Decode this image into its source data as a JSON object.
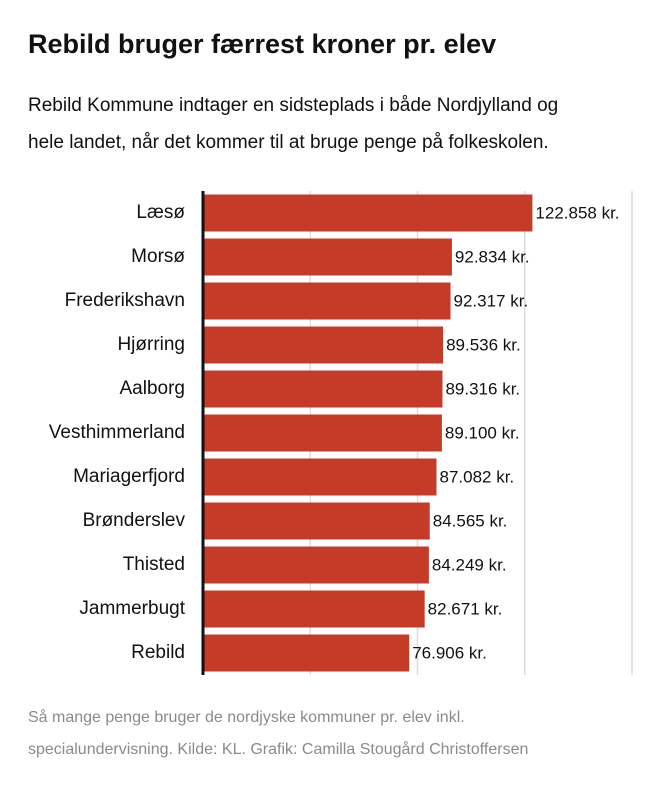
{
  "chart_data": {
    "type": "barh",
    "title": "Rebild bruger færrest kroner pr. elev",
    "subtitle": [
      "Rebild Kommune indtager en sidsteplads i både Nordjylland og",
      "hele landet, når det kommer til at bruge penge på folkeskolen."
    ],
    "categories": [
      "Læsø",
      "Morsø",
      "Frederikshavn",
      "Hjørring",
      "Aalborg",
      "Vesthimmerland",
      "Mariagerfjord",
      "Brønderslev",
      "Thisted",
      "Jammerbugt",
      "Rebild"
    ],
    "values": [
      122858,
      92834,
      92317,
      89536,
      89316,
      89100,
      87082,
      84565,
      84249,
      82671,
      76906
    ],
    "value_labels": [
      "122.858 kr.",
      "92.834 kr.",
      "92.317 kr.",
      "89.536 kr.",
      "89.316 kr.",
      "89.100 kr.",
      "87.082 kr.",
      "84.565 kr.",
      "84.249 kr.",
      "82.671 kr.",
      "76.906 kr."
    ],
    "color": "#c43b28",
    "xlim": [
      0,
      160000
    ],
    "xticks": [
      0,
      40000,
      80000,
      120000,
      160000
    ],
    "grid": true,
    "note": [
      "Så mange penge bruger de nordjyske kommuner pr. elev inkl.",
      "specialundervisning. Kilde: KL. Grafik: Camilla Stougård Christoffersen"
    ]
  }
}
